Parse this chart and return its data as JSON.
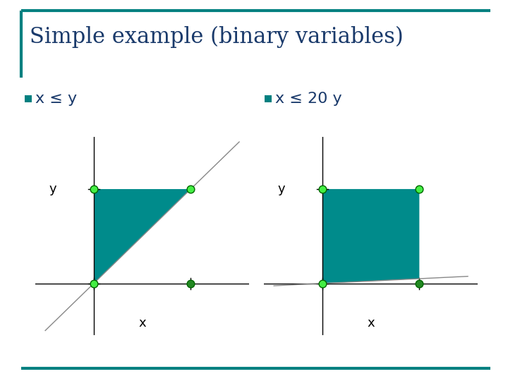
{
  "title": "Simple example (binary variables)",
  "title_color": "#1a3a6b",
  "title_fontsize": 22,
  "background_color": "#ffffff",
  "border_color": "#008080",
  "label1": "x ≤ y",
  "label2": "x ≤ 20 y",
  "label_color": "#1a3a6b",
  "label_fontsize": 16,
  "bullet_color": "#008080",
  "teal_fill": "#008b8b",
  "teal_fill_alpha": 1.0,
  "dot_color": "#44ee44",
  "dot_color2": "#228822",
  "dot_edge_color": "#006600",
  "dot_size": 60,
  "axis_color": "#000000",
  "line_color": "#888888",
  "line_width": 1.0
}
